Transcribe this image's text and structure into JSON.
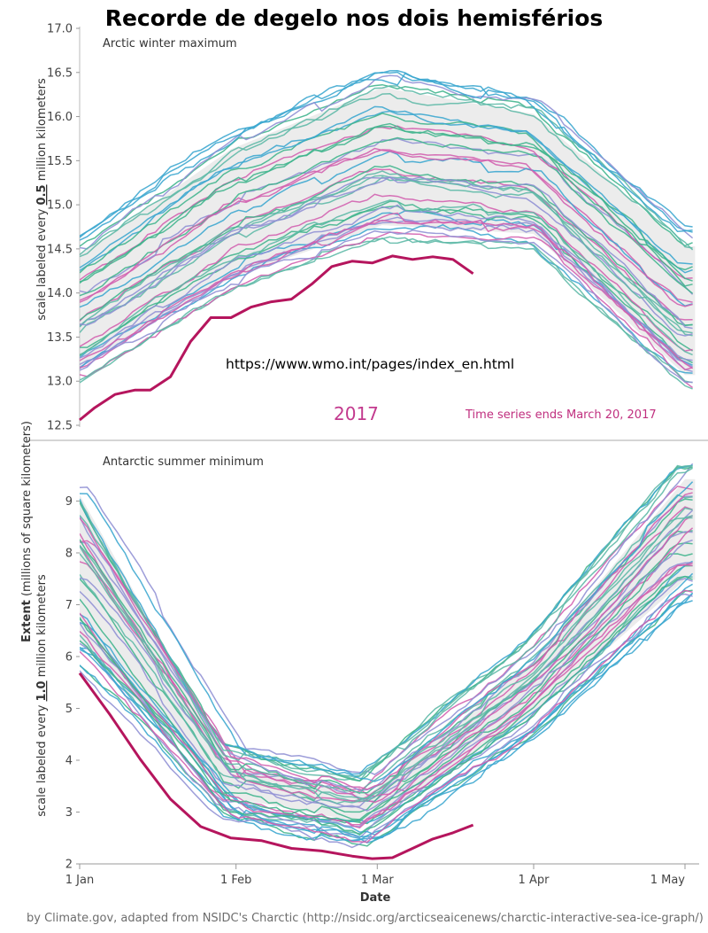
{
  "title": "Recorde de degelo nos dois hemisférios",
  "url_overlay": "https://www.wmo.int/pages/index_en.html",
  "credit": "by Climate.gov, adapted from NSIDC's Charctic (http://nsidc.org/arcticseaicenews/charctic-interactive-sea-ice-graph/)",
  "y_axis_label": {
    "main": "Extent",
    "unit": "(millions of square kilometers)",
    "top_note": [
      "scale labeled every ",
      "0.5",
      " million kilometers"
    ],
    "bottom_note": [
      "scale labeled every ",
      "1.0",
      " million kilometers"
    ]
  },
  "colors": {
    "record_2017": "#b5155d",
    "year_label": "#c33a8e",
    "series_palette": [
      "#3fb48c",
      "#3aa6cf",
      "#8f8fd4",
      "#d15fae",
      "#5cb8a6"
    ],
    "band": "#dcdcdc"
  },
  "chart_data": [
    {
      "type": "line",
      "title": "Arctic winter maximum",
      "xlabel": "",
      "ylabel": "Extent (millions of square kilometers)",
      "ylim": [
        12.5,
        17.0
      ],
      "y_ticks": [
        "12.5",
        "13.0",
        "13.5",
        "14.0",
        "14.5",
        "15.0",
        "15.5",
        "16.0",
        "16.5",
        "17.0"
      ],
      "xlim": [
        "1 Jan",
        "1 May"
      ],
      "year_label": "2017",
      "annotation": "Time series ends March 20, 2017",
      "historical_envelope": {
        "day": [
          0,
          30,
          60,
          90,
          120
        ],
        "low": [
          12.9,
          13.9,
          14.5,
          14.4,
          12.8
        ],
        "high": [
          14.7,
          15.9,
          16.6,
          16.3,
          14.8
        ]
      },
      "record_series": {
        "name": "2017",
        "day": [
          0,
          3,
          7,
          11,
          14,
          18,
          22,
          26,
          30,
          34,
          38,
          42,
          46,
          50,
          54,
          58,
          62,
          66,
          70,
          74,
          78
        ],
        "values": [
          12.56,
          12.7,
          12.85,
          12.9,
          12.9,
          13.05,
          13.45,
          13.72,
          13.72,
          13.84,
          13.9,
          13.93,
          14.1,
          14.3,
          14.36,
          14.34,
          14.42,
          14.38,
          14.41,
          14.38,
          14.22
        ]
      }
    },
    {
      "type": "line",
      "title": "Antarctic summer minimum",
      "xlabel": "Date",
      "ylabel": "Extent (millions of square kilometers)",
      "ylim": [
        2,
        10
      ],
      "y_ticks": [
        "2",
        "3",
        "4",
        "5",
        "6",
        "7",
        "8",
        "9"
      ],
      "x_ticks": [
        "1 Jan",
        "1 Feb",
        "1 Mar",
        "1 Apr",
        "1 May"
      ],
      "historical_envelope": {
        "day": [
          0,
          30,
          57,
          90,
          120
        ],
        "low": [
          5.8,
          2.8,
          2.3,
          4.4,
          7.0
        ],
        "high": [
          9.6,
          4.4,
          3.8,
          6.4,
          9.9
        ]
      },
      "record_series": {
        "name": "2017",
        "day": [
          0,
          6,
          12,
          18,
          24,
          30,
          36,
          42,
          48,
          54,
          58,
          62,
          66,
          70,
          74,
          78
        ],
        "values": [
          5.68,
          4.88,
          4.02,
          3.25,
          2.72,
          2.5,
          2.45,
          2.3,
          2.25,
          2.15,
          2.1,
          2.12,
          2.3,
          2.48,
          2.6,
          2.75
        ]
      }
    }
  ]
}
